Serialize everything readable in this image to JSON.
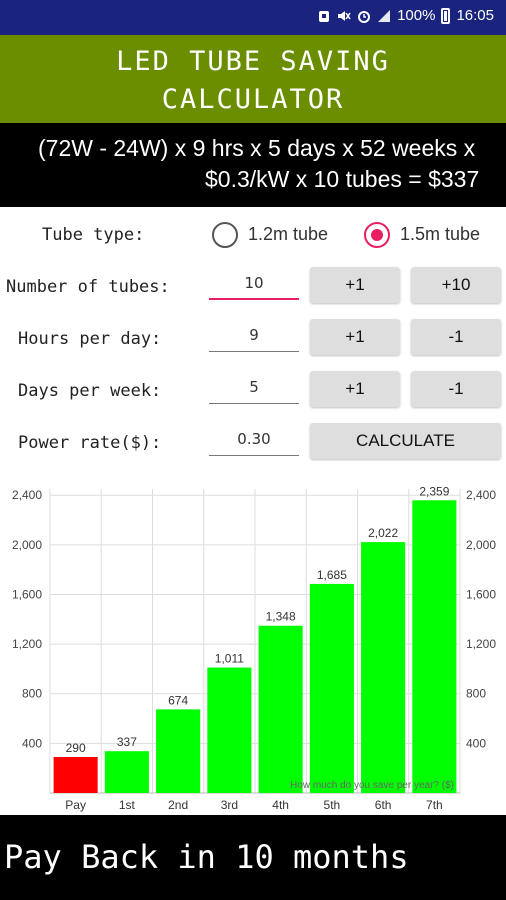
{
  "status_bar": {
    "battery": "100%",
    "time": "16:05"
  },
  "title": {
    "line1": "LED TUBE SAVING",
    "line2": "CALCULATOR"
  },
  "formula": {
    "line1": "(72W - 24W) x 9 hrs x 5 days x 52 weeks x",
    "line2": "$0.3/kW x 10 tubes = $337"
  },
  "form": {
    "tube_type_label": "Tube type:",
    "tube_options": [
      {
        "label": "1.2m tube",
        "selected": false
      },
      {
        "label": "1.5m tube",
        "selected": true
      }
    ],
    "tubes_label": "Number of tubes:",
    "tubes_value": "10",
    "tubes_plus1": "+1",
    "tubes_plus10": "+10",
    "hours_label": "Hours per day:",
    "hours_value": "9",
    "hours_plus": "+1",
    "hours_minus": "-1",
    "days_label": "Days per week:",
    "days_value": "5",
    "days_plus": "+1",
    "days_minus": "-1",
    "rate_label": "Power rate($):",
    "rate_value": "0.30",
    "calculate_label": "CALCULATE",
    "accent_color": "#e91e63"
  },
  "chart_data": {
    "type": "bar",
    "categories": [
      "Pay",
      "1st",
      "2nd",
      "3rd",
      "4th",
      "5th",
      "6th",
      "7th"
    ],
    "values": [
      290,
      337,
      674,
      1011,
      1348,
      1685,
      2022,
      2359
    ],
    "value_labels": [
      "290",
      "337",
      "674",
      "1,011",
      "1,348",
      "1,685",
      "2,022",
      "2,359"
    ],
    "colors": [
      "#ff0000",
      "#00ff00",
      "#00ff00",
      "#00ff00",
      "#00ff00",
      "#00ff00",
      "#00ff00",
      "#00ff00"
    ],
    "yticks": [
      400,
      800,
      1200,
      1600,
      2000,
      2400
    ],
    "ytick_labels": [
      "400",
      "800",
      "1,200",
      "1,600",
      "2,000",
      "2,400"
    ],
    "ylim": [
      0,
      2450
    ],
    "annotation": "How much do you save per year? ($)",
    "grid": true
  },
  "footer": {
    "text": "Pay Back in 10 months"
  }
}
